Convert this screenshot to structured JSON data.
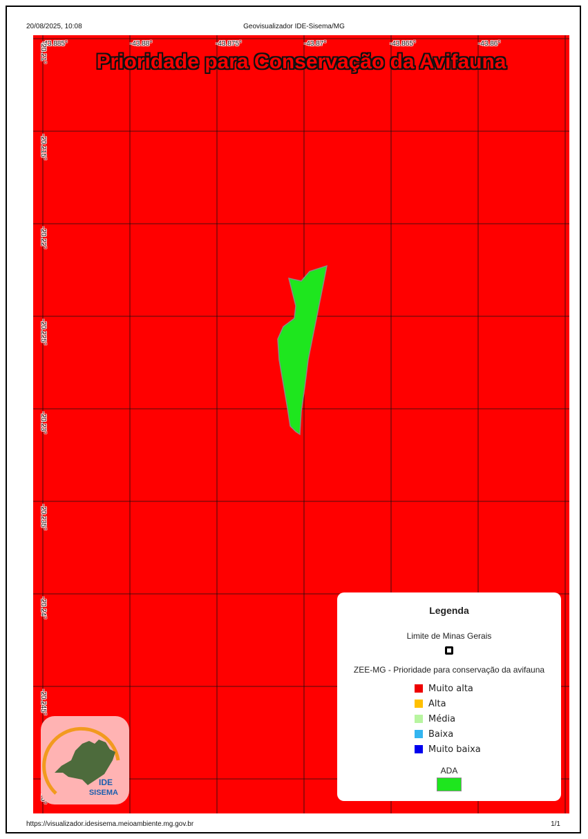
{
  "header": {
    "datetime": "20/08/2025, 10:08",
    "app_title": "Geovisualizador IDE-Sisema/MG"
  },
  "footer": {
    "url": "https://visualizador.idesisema.meioambiente.mg.gov.br",
    "page": "1/1"
  },
  "map": {
    "title": "Prioridade para Conservação da Avifauna",
    "longitude_labels": [
      "-43.885°",
      "-43.88°",
      "-43.875°",
      "-43.87°",
      "-43.865°",
      "-43.86°"
    ],
    "latitude_labels": [
      "-20.21°",
      "-20.215°",
      "-20.22°",
      "-20.225°",
      "-20.23°",
      "-20.235°",
      "-20.24°",
      "-20.245°",
      "-20.25°"
    ],
    "background_color": "#ff0000",
    "polygon_color": "#1ee61e"
  },
  "legend": {
    "title": "Legenda",
    "limite_label": "Limite de Minas Gerais",
    "zee_label": "ZEE-MG - Prioridade para conservação da avifauna",
    "items": [
      {
        "label": "Muito alta",
        "color": "#ee0000"
      },
      {
        "label": "Alta",
        "color": "#ffc000"
      },
      {
        "label": "Média",
        "color": "#b8f5a0"
      },
      {
        "label": "Baixa",
        "color": "#33b5f0"
      },
      {
        "label": "Muito baixa",
        "color": "#0000ee"
      }
    ],
    "ada_label": "ADA",
    "ada_color": "#1ee61e"
  },
  "logo": {
    "text_line1": "IDE",
    "text_line2": "SISEMA"
  }
}
